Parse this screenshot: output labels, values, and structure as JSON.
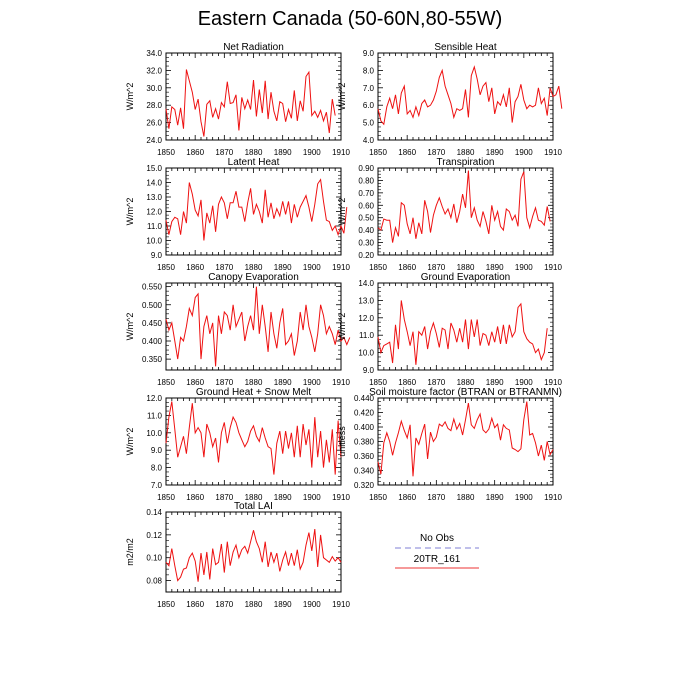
{
  "title": "Eastern Canada (50-60N,80-55W)",
  "legend": {
    "items": [
      {
        "label": "No Obs",
        "color": "#9999dd",
        "style": "dashed"
      },
      {
        "label": "20TR_161",
        "color": "#ee3333",
        "style": "solid"
      }
    ]
  },
  "chart_data": [
    {
      "type": "line",
      "title": "Net Radiation",
      "ylabel": "W/m^2",
      "xlim": [
        1850,
        1910
      ],
      "ylim": [
        24.0,
        34.0
      ],
      "yticks": [
        "24.0",
        "26.0",
        "28.0",
        "30.0",
        "32.0",
        "34.0"
      ],
      "xticks": [
        "1850",
        "1860",
        "1870",
        "1880",
        "1890",
        "1900",
        "1910"
      ],
      "x_start": 1850,
      "series": [
        {
          "name": "20TR_161",
          "values": [
            27.6,
            25.3,
            27.8,
            27.5,
            25.7,
            27.7,
            25.3,
            32.1,
            30.8,
            29.5,
            27.5,
            28.7,
            26.1,
            24.4,
            28.1,
            28.5,
            26.6,
            27.6,
            26.4,
            28.3,
            27.8,
            30.7,
            28.2,
            28.3,
            29.2,
            25.1,
            28.9,
            27.6,
            28.6,
            27.5,
            30.9,
            26.7,
            29.8,
            27.1,
            30.8,
            26.4,
            29.5,
            27.3,
            26.2,
            28.4,
            28.2,
            26.1,
            27.5,
            26.5,
            29.7,
            26.2,
            28.5,
            27.3,
            31.3,
            31.8,
            26.8,
            27.3,
            26.6,
            27.4,
            26.2,
            27.2,
            24.8,
            28.7,
            26.8
          ]
        }
      ]
    },
    {
      "type": "line",
      "title": "Sensible Heat",
      "ylabel": "W/m^2",
      "xlim": [
        1850,
        1910
      ],
      "ylim": [
        4.0,
        9.0
      ],
      "yticks": [
        "4.0",
        "5.0",
        "6.0",
        "7.0",
        "8.0",
        "9.0"
      ],
      "xticks": [
        "1850",
        "1860",
        "1870",
        "1880",
        "1890",
        "1900",
        "1910"
      ],
      "x_start": 1850,
      "series": [
        {
          "name": "20TR_161",
          "values": [
            5.8,
            5.1,
            4.9,
            5.9,
            6.4,
            5.8,
            6.6,
            5.5,
            6.7,
            7.1,
            5.5,
            5.7,
            5.3,
            5.9,
            5.4,
            6.1,
            6.3,
            5.9,
            6.0,
            6.3,
            6.8,
            7.6,
            8.0,
            7.1,
            6.6,
            6.1,
            5.3,
            5.8,
            5.7,
            5.8,
            6.9,
            5.3,
            7.7,
            8.2,
            7.5,
            6.6,
            7.1,
            7.3,
            6.2,
            7.0,
            5.5,
            6.2,
            6.0,
            6.6,
            5.9,
            7.0,
            5.0,
            6.2,
            6.5,
            7.2,
            6.3,
            5.8,
            6.0,
            5.9,
            6.0,
            7.0,
            6.1,
            6.4,
            5.4,
            7.0,
            6.5,
            6.6,
            7.1,
            5.8
          ]
        }
      ]
    },
    {
      "type": "line",
      "title": "Latent Heat",
      "ylabel": "W/m^2",
      "xlim": [
        1850,
        1910
      ],
      "ylim": [
        9.0,
        15.0
      ],
      "yticks": [
        "9.0",
        "10.0",
        "11.0",
        "12.0",
        "13.0",
        "14.0",
        "15.0"
      ],
      "xticks": [
        "1850",
        "1860",
        "1870",
        "1880",
        "1890",
        "1900",
        "1910"
      ],
      "x_start": 1850,
      "series": [
        {
          "name": "20TR_161",
          "values": [
            11.4,
            10.4,
            11.3,
            11.6,
            11.5,
            10.4,
            12.0,
            11.2,
            14.0,
            13.2,
            12.1,
            11.7,
            12.8,
            10.0,
            11.9,
            11.2,
            12.4,
            10.6,
            12.5,
            13.0,
            12.6,
            11.5,
            12.6,
            12.6,
            13.4,
            12.3,
            12.3,
            11.3,
            12.6,
            13.6,
            11.8,
            12.5,
            12.0,
            11.2,
            13.5,
            11.6,
            12.6,
            11.5,
            12.2,
            11.7,
            12.7,
            11.8,
            12.7,
            11.2,
            12.5,
            11.6,
            12.3,
            12.7,
            13.1,
            12.3,
            11.3,
            12.5,
            13.9,
            14.2,
            12.7,
            11.4,
            11.3,
            10.7,
            11.0,
            10.4,
            11.0,
            10.5,
            12.3
          ]
        }
      ]
    },
    {
      "type": "line",
      "title": "Transpiration",
      "ylabel": "W/m^2",
      "xlim": [
        1850,
        1910
      ],
      "ylim": [
        0.2,
        0.9
      ],
      "yticks": [
        "0.20",
        "0.30",
        "0.40",
        "0.50",
        "0.60",
        "0.70",
        "0.80",
        "0.90"
      ],
      "xticks": [
        "1850",
        "1860",
        "1870",
        "1880",
        "1890",
        "1900",
        "1910"
      ],
      "x_start": 1850,
      "series": [
        {
          "name": "20TR_161",
          "values": [
            0.42,
            0.4,
            0.49,
            0.48,
            0.48,
            0.3,
            0.42,
            0.35,
            0.62,
            0.6,
            0.45,
            0.37,
            0.5,
            0.33,
            0.46,
            0.37,
            0.64,
            0.55,
            0.38,
            0.52,
            0.6,
            0.66,
            0.59,
            0.53,
            0.57,
            0.5,
            0.61,
            0.46,
            0.55,
            0.69,
            0.58,
            0.88,
            0.5,
            0.58,
            0.48,
            0.43,
            0.55,
            0.47,
            0.37,
            0.6,
            0.48,
            0.55,
            0.43,
            0.4,
            0.57,
            0.55,
            0.48,
            0.52,
            0.43,
            0.81,
            0.87,
            0.5,
            0.42,
            0.51,
            0.58,
            0.48,
            0.47,
            0.44,
            0.59,
            0.47
          ]
        }
      ]
    },
    {
      "type": "line",
      "title": "Canopy Evaporation",
      "ylabel": "W/m^2",
      "xlim": [
        1850,
        1910
      ],
      "ylim": [
        0.32,
        0.56
      ],
      "yticks": [
        "0.350",
        "0.400",
        "0.450",
        "0.500",
        "0.550"
      ],
      "xticks": [
        "1850",
        "1860",
        "1870",
        "1880",
        "1890",
        "1900",
        "1910"
      ],
      "x_start": 1850,
      "series": [
        {
          "name": "20TR_161",
          "values": [
            0.46,
            0.43,
            0.45,
            0.4,
            0.35,
            0.41,
            0.4,
            0.44,
            0.49,
            0.47,
            0.52,
            0.53,
            0.35,
            0.44,
            0.47,
            0.42,
            0.45,
            0.33,
            0.47,
            0.42,
            0.48,
            0.47,
            0.43,
            0.5,
            0.44,
            0.46,
            0.48,
            0.4,
            0.44,
            0.47,
            0.43,
            0.55,
            0.42,
            0.5,
            0.44,
            0.37,
            0.48,
            0.42,
            0.38,
            0.45,
            0.49,
            0.39,
            0.4,
            0.42,
            0.36,
            0.4,
            0.48,
            0.43,
            0.5,
            0.44,
            0.41,
            0.37,
            0.42,
            0.5,
            0.47,
            0.42,
            0.44,
            0.42,
            0.39,
            0.43,
            0.4,
            0.41,
            0.39,
            0.41
          ]
        }
      ]
    },
    {
      "type": "line",
      "title": "Ground Evaporation",
      "ylabel": "W/m^2",
      "xlim": [
        1850,
        1910
      ],
      "ylim": [
        9.0,
        14.0
      ],
      "yticks": [
        "9.0",
        "10.0",
        "11.0",
        "12.0",
        "13.0",
        "14.0"
      ],
      "xticks": [
        "1850",
        "1860",
        "1870",
        "1880",
        "1890",
        "1900",
        "1910"
      ],
      "x_start": 1850,
      "series": [
        {
          "name": "20TR_161",
          "values": [
            10.9,
            10.0,
            10.4,
            10.5,
            10.6,
            9.4,
            11.6,
            10.2,
            13.0,
            11.9,
            11.2,
            10.4,
            11.2,
            9.3,
            11.2,
            11.0,
            11.5,
            10.2,
            11.2,
            11.7,
            11.1,
            10.3,
            11.4,
            11.3,
            10.2,
            11.7,
            11.3,
            10.6,
            11.4,
            10.6,
            11.9,
            10.2,
            11.9,
            10.9,
            11.9,
            10.4,
            11.1,
            11.0,
            10.4,
            11.2,
            10.6,
            11.5,
            10.5,
            11.6,
            10.5,
            11.6,
            10.9,
            11.2,
            12.6,
            12.8,
            11.2,
            10.8,
            10.6,
            10.5,
            10.0,
            10.2,
            9.6,
            10.0,
            11.4
          ]
        }
      ]
    },
    {
      "type": "line",
      "title": "Ground Heat + Snow Melt",
      "ylabel": "W/m^2",
      "xlim": [
        1850,
        1910
      ],
      "ylim": [
        7.0,
        12.0
      ],
      "yticks": [
        "7.0",
        "8.0",
        "9.0",
        "10.0",
        "11.0",
        "12.0"
      ],
      "xticks": [
        "1850",
        "1860",
        "1870",
        "1880",
        "1890",
        "1900",
        "1910"
      ],
      "x_start": 1850,
      "series": [
        {
          "name": "20TR_161",
          "values": [
            9.4,
            10.9,
            11.8,
            10.2,
            8.6,
            9.2,
            9.8,
            8.8,
            10.3,
            11.7,
            10.0,
            10.3,
            10.0,
            8.6,
            10.5,
            10.0,
            9.2,
            9.7,
            8.3,
            10.0,
            10.6,
            9.4,
            10.3,
            10.9,
            10.6,
            10.0,
            9.6,
            9.2,
            9.5,
            10.1,
            10.4,
            9.8,
            9.5,
            10.3,
            9.7,
            9.2,
            9.1,
            7.6,
            9.4,
            10.1,
            8.8,
            10.1,
            9.1,
            10.0,
            8.6,
            10.4,
            8.6,
            10.5,
            9.3,
            10.2,
            8.0,
            10.9,
            8.6,
            10.1,
            8.0,
            9.6,
            8.3,
            10.2,
            7.6,
            10.7,
            8.6
          ]
        }
      ]
    },
    {
      "type": "line",
      "title": "Soil moisture factor (BTRAN or BTRANMN)",
      "ylabel": "unitless",
      "xlim": [
        1850,
        1910
      ],
      "ylim": [
        0.32,
        0.44
      ],
      "yticks": [
        "0.320",
        "0.340",
        "0.360",
        "0.380",
        "0.400",
        "0.420",
        "0.440"
      ],
      "xticks": [
        "1850",
        "1860",
        "1870",
        "1880",
        "1890",
        "1900",
        "1910"
      ],
      "x_start": 1850,
      "series": [
        {
          "name": "20TR_161",
          "values": [
            0.352,
            0.335,
            0.378,
            0.392,
            0.38,
            0.361,
            0.378,
            0.392,
            0.408,
            0.395,
            0.385,
            0.403,
            0.332,
            0.385,
            0.376,
            0.391,
            0.404,
            0.356,
            0.393,
            0.38,
            0.386,
            0.404,
            0.401,
            0.407,
            0.398,
            0.395,
            0.411,
            0.397,
            0.405,
            0.389,
            0.41,
            0.433,
            0.403,
            0.398,
            0.41,
            0.418,
            0.396,
            0.392,
            0.397,
            0.412,
            0.399,
            0.404,
            0.382,
            0.403,
            0.398,
            0.396,
            0.371,
            0.369,
            0.366,
            0.37,
            0.41,
            0.435,
            0.389,
            0.391,
            0.378,
            0.36,
            0.375,
            0.354,
            0.38,
            0.362,
            0.369
          ]
        }
      ]
    },
    {
      "type": "line",
      "title": "Total LAI",
      "ylabel": "m2/m2",
      "xlim": [
        1850,
        1910
      ],
      "ylim": [
        0.07,
        0.14
      ],
      "yticks": [
        "0.08",
        "0.10",
        "0.12",
        "0.14"
      ],
      "xticks": [
        "1850",
        "1860",
        "1870",
        "1880",
        "1890",
        "1900",
        "1910"
      ],
      "x_start": 1850,
      "series": [
        {
          "name": "20TR_161",
          "values": [
            0.096,
            0.093,
            0.108,
            0.093,
            0.08,
            0.083,
            0.09,
            0.091,
            0.1,
            0.104,
            0.097,
            0.079,
            0.104,
            0.085,
            0.105,
            0.081,
            0.108,
            0.094,
            0.096,
            0.112,
            0.087,
            0.114,
            0.093,
            0.105,
            0.111,
            0.1,
            0.107,
            0.11,
            0.104,
            0.114,
            0.124,
            0.114,
            0.108,
            0.096,
            0.114,
            0.092,
            0.105,
            0.096,
            0.104,
            0.088,
            0.098,
            0.105,
            0.093,
            0.104,
            0.093,
            0.107,
            0.09,
            0.096,
            0.111,
            0.122,
            0.106,
            0.125,
            0.092,
            0.12,
            0.1,
            0.098,
            0.096,
            0.101,
            0.097,
            0.1,
            0.096
          ]
        }
      ]
    }
  ]
}
